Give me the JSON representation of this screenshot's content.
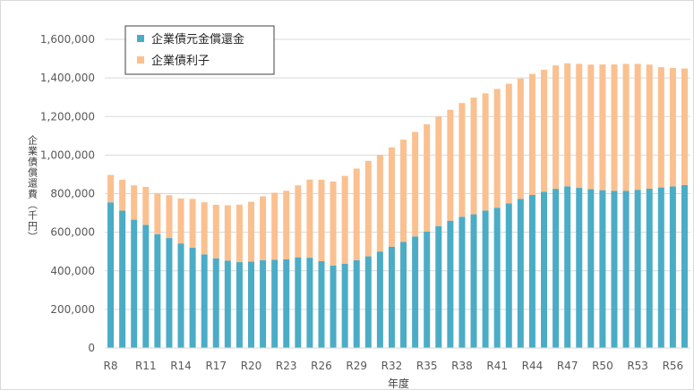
{
  "chart_data": {
    "type": "bar",
    "stacked": true,
    "xlabel": "年度",
    "ylabel": "企業債償還費（千円）",
    "ylim": [
      0,
      1600000
    ],
    "yticks": [
      "0",
      "200,000",
      "400,000",
      "600,000",
      "800,000",
      "1,000,000",
      "1,200,000",
      "1,400,000",
      "1,600,000"
    ],
    "categories": [
      "R8",
      "R9",
      "R10",
      "R11",
      "R12",
      "R13",
      "R14",
      "R15",
      "R16",
      "R17",
      "R18",
      "R19",
      "R20",
      "R21",
      "R22",
      "R23",
      "R24",
      "R25",
      "R26",
      "R27",
      "R28",
      "R29",
      "R30",
      "R31",
      "R32",
      "R33",
      "R34",
      "R35",
      "R36",
      "R37",
      "R38",
      "R39",
      "R40",
      "R41",
      "R42",
      "R43",
      "R44",
      "R45",
      "R46",
      "R47",
      "R48",
      "R49",
      "R50",
      "R51",
      "R52",
      "R53",
      "R54",
      "R55",
      "R56",
      "R57"
    ],
    "xtick_labels": [
      "R8",
      "R11",
      "R14",
      "R17",
      "R20",
      "R23",
      "R26",
      "R29",
      "R32",
      "R35",
      "R38",
      "R41",
      "R44",
      "R47",
      "R50",
      "R53",
      "R56"
    ],
    "grid": true,
    "legend_position": "top-left",
    "series": [
      {
        "name": "企業債元金償還金",
        "color": "#4BACC6",
        "values": [
          755000,
          712000,
          665000,
          638000,
          590000,
          570000,
          542000,
          520000,
          485000,
          465000,
          453000,
          445000,
          448000,
          455000,
          457000,
          460000,
          470000,
          468000,
          450000,
          428000,
          437000,
          455000,
          475000,
          500000,
          525000,
          550000,
          578000,
          603000,
          632000,
          660000,
          680000,
          693000,
          712000,
          727000,
          750000,
          773000,
          793000,
          810000,
          825000,
          838000,
          830000,
          823000,
          818000,
          815000,
          815000,
          820000,
          826000,
          832000,
          838000,
          845000
        ]
      },
      {
        "name": "企業債利子",
        "color": "#FAC090",
        "values": [
          142000,
          160000,
          178000,
          197000,
          213000,
          222000,
          233000,
          253000,
          270000,
          277000,
          287000,
          298000,
          310000,
          331000,
          348000,
          355000,
          373000,
          405000,
          422000,
          435000,
          455000,
          475000,
          495000,
          500000,
          515000,
          530000,
          542000,
          557000,
          568000,
          575000,
          590000,
          605000,
          608000,
          616000,
          620000,
          624000,
          628000,
          632000,
          640000,
          638000,
          643000,
          646000,
          652000,
          655000,
          658000,
          653000,
          643000,
          624000,
          614000,
          604000
        ]
      }
    ]
  }
}
